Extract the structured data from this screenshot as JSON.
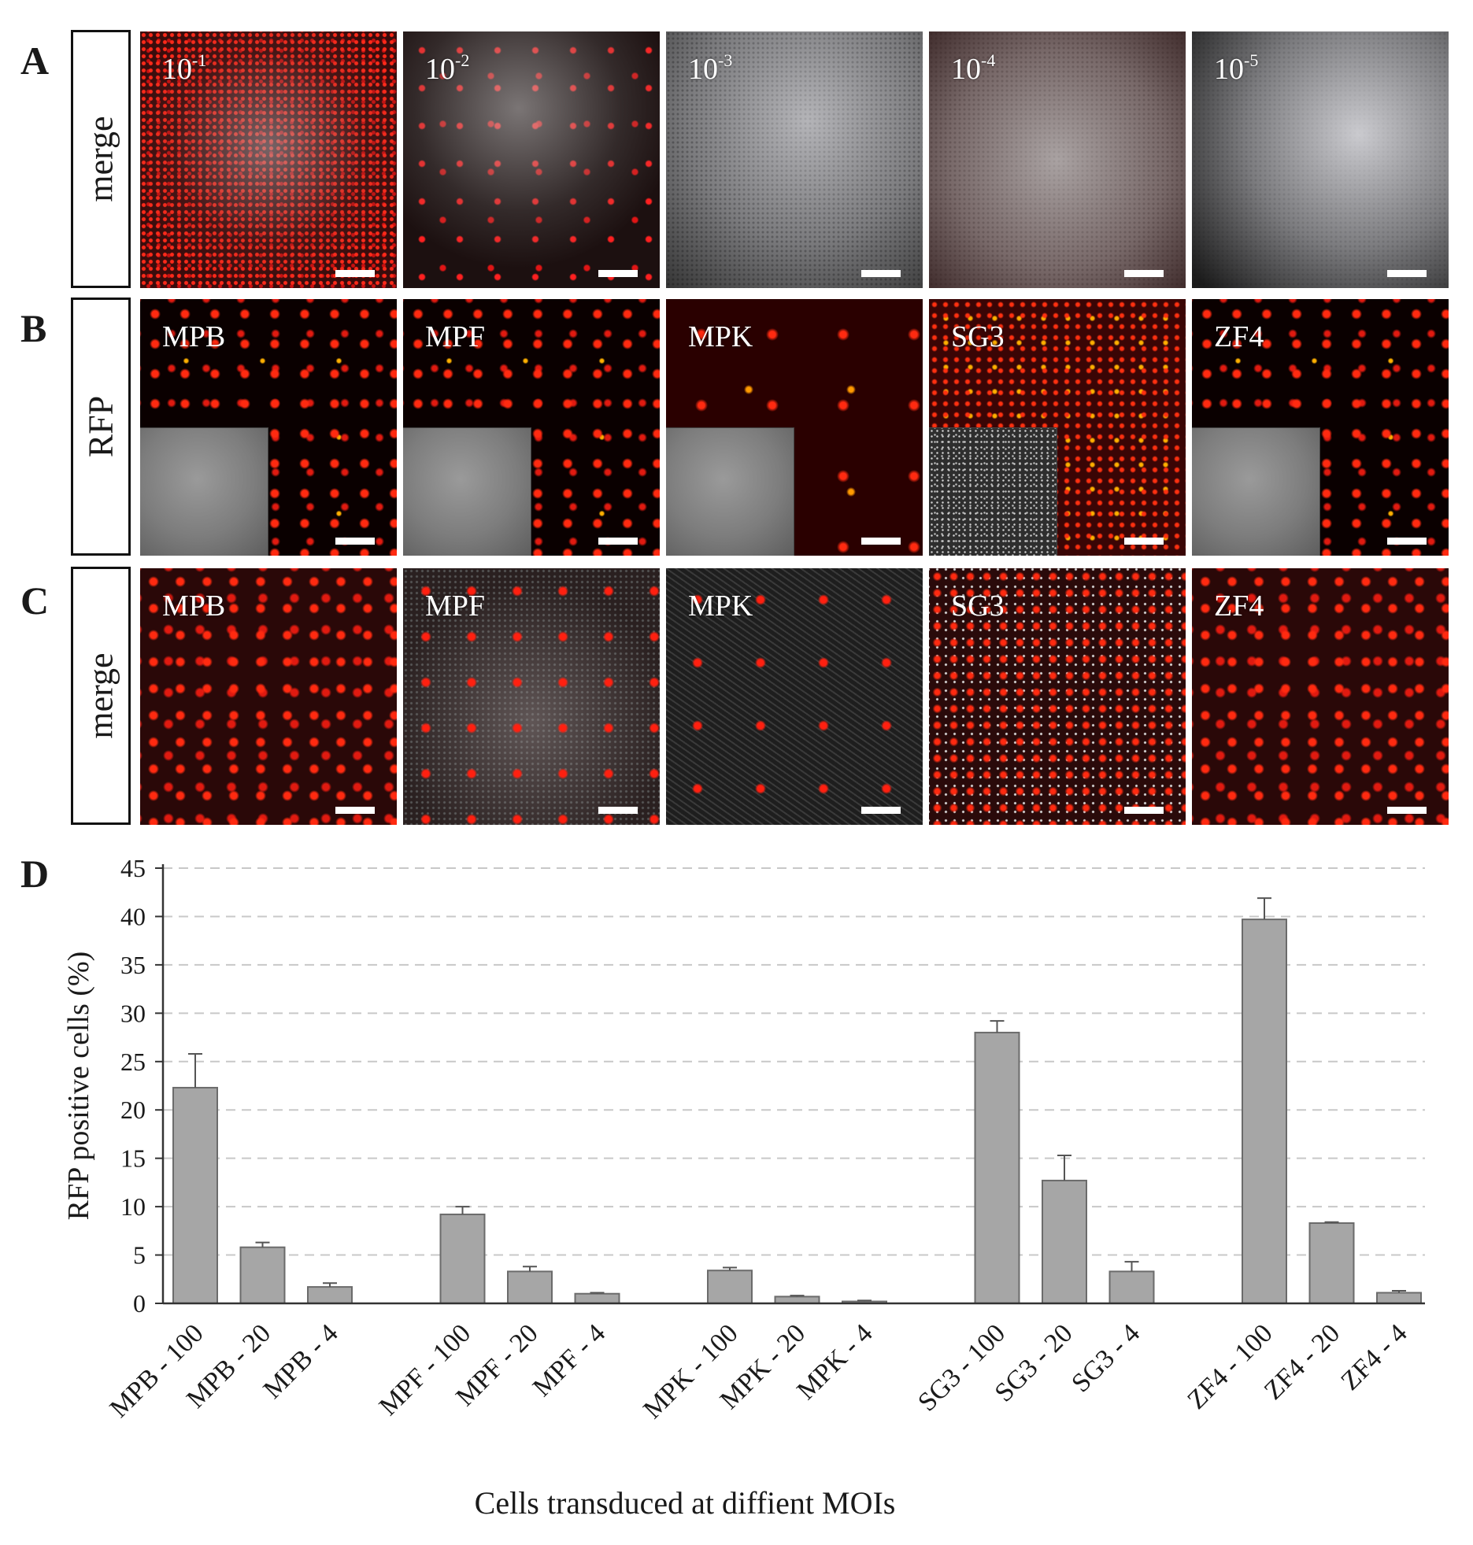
{
  "panels": {
    "A": {
      "letter": "A",
      "row_label": "merge",
      "images": [
        {
          "base": "10",
          "exp": "-1"
        },
        {
          "base": "10",
          "exp": "-2"
        },
        {
          "base": "10",
          "exp": "-3"
        },
        {
          "base": "10",
          "exp": "-4"
        },
        {
          "base": "10",
          "exp": "-5"
        }
      ]
    },
    "B": {
      "letter": "B",
      "row_label": "RFP",
      "images": [
        "MPB",
        "MPF",
        "MPK",
        "SG3",
        "ZF4"
      ]
    },
    "C": {
      "letter": "C",
      "row_label": "merge",
      "images": [
        "MPB",
        "MPF",
        "MPK",
        "SG3",
        "ZF4"
      ]
    },
    "D": {
      "letter": "D"
    }
  },
  "chart_data": {
    "type": "bar",
    "title": "",
    "xlabel": "Cells transduced at diffient MOIs",
    "ylabel": "RFP positive cells  (%)",
    "ylim": [
      0,
      45
    ],
    "yticks": [
      0,
      5,
      10,
      15,
      20,
      25,
      30,
      35,
      40,
      45
    ],
    "grid": "horizontal-dashed",
    "color": "#a6a6a6",
    "groups": [
      {
        "name": "MPB",
        "bars": [
          {
            "label": "MPB - 100",
            "value": 22.3,
            "error": 3.5
          },
          {
            "label": "MPB - 20",
            "value": 5.8,
            "error": 0.5
          },
          {
            "label": "MPB - 4",
            "value": 1.7,
            "error": 0.4
          }
        ]
      },
      {
        "name": "MPF",
        "bars": [
          {
            "label": "MPF - 100",
            "value": 9.2,
            "error": 0.8
          },
          {
            "label": "MPF - 20",
            "value": 3.3,
            "error": 0.5
          },
          {
            "label": "MPF - 4",
            "value": 1.0,
            "error": 0.1
          }
        ]
      },
      {
        "name": "MPK",
        "bars": [
          {
            "label": "MPK - 100",
            "value": 3.4,
            "error": 0.3
          },
          {
            "label": "MPK - 20",
            "value": 0.7,
            "error": 0.1
          },
          {
            "label": "MPK - 4",
            "value": 0.2,
            "error": 0.1
          }
        ]
      },
      {
        "name": "SG3",
        "bars": [
          {
            "label": "SG3 - 100",
            "value": 28.0,
            "error": 1.2
          },
          {
            "label": "SG3 - 20",
            "value": 12.7,
            "error": 2.6
          },
          {
            "label": "SG3 - 4",
            "value": 3.3,
            "error": 1.0
          }
        ]
      },
      {
        "name": "ZF4",
        "bars": [
          {
            "label": "ZF4 - 100",
            "value": 39.7,
            "error": 2.2
          },
          {
            "label": "ZF4 - 20",
            "value": 8.3,
            "error": 0.1
          },
          {
            "label": "ZF4 - 4",
            "value": 1.1,
            "error": 0.2
          }
        ]
      }
    ]
  }
}
